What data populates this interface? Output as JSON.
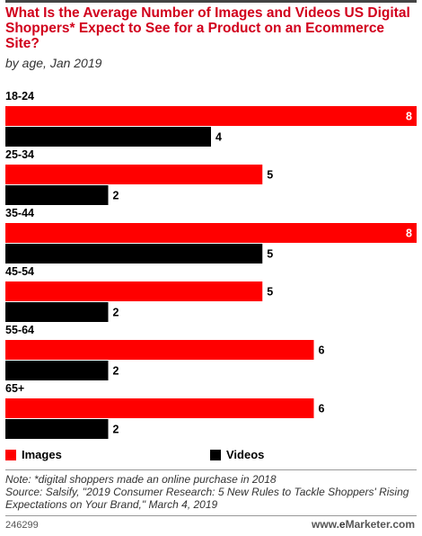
{
  "header": {
    "title": "What Is the Average Number of Images and Videos US Digital Shoppers* Expect to See for a Product on an Ecommerce Site?",
    "subtitle": "by age, Jan 2019"
  },
  "colors": {
    "images": "#ff0000",
    "videos": "#000000"
  },
  "chart_data": {
    "type": "bar",
    "orientation": "horizontal",
    "categories": [
      "18-24",
      "25-34",
      "35-44",
      "45-54",
      "55-64",
      "65+"
    ],
    "series": [
      {
        "name": "Images",
        "values": [
          8,
          5,
          8,
          5,
          6,
          6
        ]
      },
      {
        "name": "Videos",
        "values": [
          4,
          2,
          5,
          2,
          2,
          2
        ]
      }
    ],
    "xlim": [
      0,
      8
    ],
    "grid": false,
    "legend_position": "bottom"
  },
  "footer": {
    "note": "Note: *digital shoppers made an online purchase in 2018",
    "source": "Source: Salsify, \"2019 Consumer Research: 5 New Rules to Tackle Shoppers' Rising Expectations on Your Brand,\" March 4, 2019",
    "chart_id": "246299",
    "brand_prefix": "www.",
    "brand_e": "e",
    "brand_name": "Marketer",
    "brand_suffix": ".com"
  }
}
